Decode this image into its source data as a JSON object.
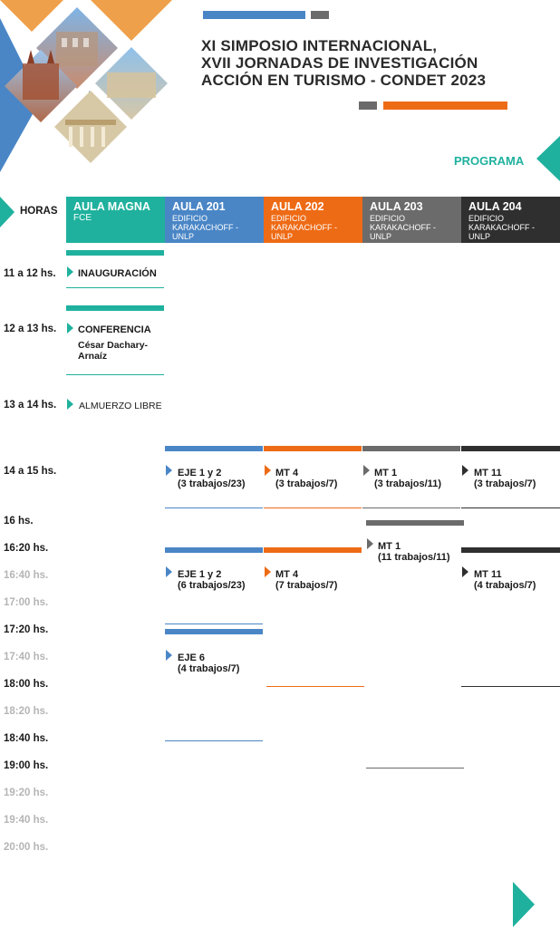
{
  "header": {
    "title_lines": [
      "XI SIMPOSIO INTERNACIONAL,",
      "XVII JORNADAS DE INVESTIGACIÓN",
      "ACCIÓN EN TURISMO - CONDET 2023"
    ],
    "section_label": "PROGRAMA"
  },
  "colors": {
    "teal": "#1fb19e",
    "blue": "#4a86c6",
    "orange": "#ee6b16",
    "gray": "#6b6b6b",
    "dark": "#2f2f2f",
    "gold": "#eea14a"
  },
  "schedule": {
    "hours_label": "HORAS",
    "columns": [
      {
        "name": "AULA MAGNA",
        "sub": "FCE"
      },
      {
        "name": "AULA 201",
        "sub": "EDIFICIO KARAKACHOFF - UNLP"
      },
      {
        "name": "AULA 202",
        "sub": "EDIFICIO KARAKACHOFF - UNLP"
      },
      {
        "name": "AULA 203",
        "sub": "EDIFICIO KARAKACHOFF - UNLP"
      },
      {
        "name": "AULA 204",
        "sub": "EDIFICIO KARAKACHOFF - UNLP"
      }
    ],
    "hours": [
      "11 a 12 hs.",
      "12 a 13 hs.",
      "13 a 14 hs.",
      "14 a 15 hs.",
      "16 hs.",
      "16:20 hs.",
      "16:40 hs.",
      "17:00 hs.",
      "17:20 hs.",
      "17:40 hs.",
      "18:00 hs.",
      "18:20 hs.",
      "18:40 hs.",
      "19:00 hs.",
      "19:20 hs.",
      "19:40 hs.",
      "20:00 hs."
    ],
    "events": {
      "inauguracion": "INAUGURACIÓN",
      "conferencia": "CONFERENCIA",
      "conferencia_speaker": "César Dachary-\nArnaíz",
      "almuerzo": "ALMUERZO LIBRE",
      "s1_eje": "EJE 1 y 2",
      "s1_eje_sub": "(3 trabajos/23)",
      "s1_mt4": "MT 4",
      "s1_mt4_sub": "(3 trabajos/7)",
      "s1_mt1": "MT 1",
      "s1_mt1_sub": "(3 trabajos/11)",
      "s1_mt11": "MT 11",
      "s1_mt11_sub": "(3 trabajos/7)",
      "s2_mt1": "MT 1",
      "s2_mt1_sub": "(11 trabajos/11)",
      "s2_eje": "EJE 1 y 2",
      "s2_eje_sub": "(6 trabajos/23)",
      "s2_mt4": "MT 4",
      "s2_mt4_sub": "(7 trabajos/7)",
      "s2_mt11": "MT 11",
      "s2_mt11_sub": "(4 trabajos/7)",
      "s3_eje6": "EJE 6",
      "s3_eje6_sub": "(4 trabajos/7)"
    }
  }
}
